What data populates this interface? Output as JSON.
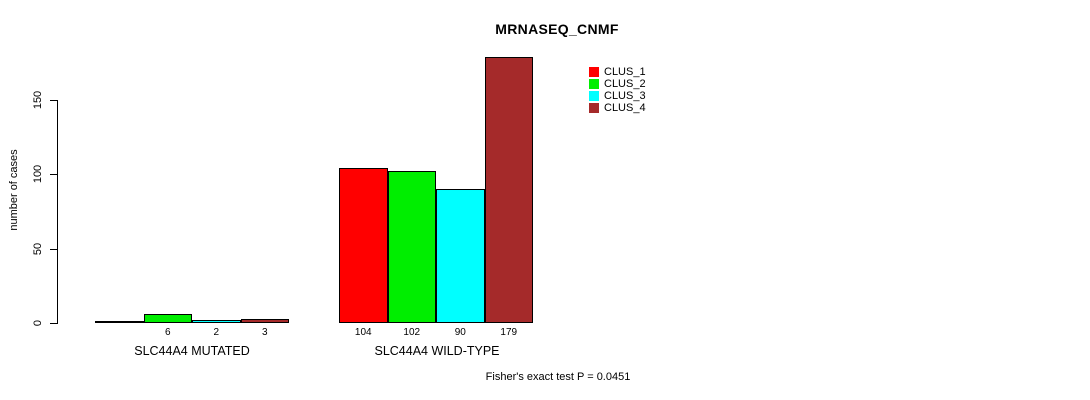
{
  "chart_data": {
    "type": "bar",
    "title": "MRNASEQ_CNMF",
    "ylabel": "number of cases",
    "xlabel": "",
    "ylim": [
      0,
      185
    ],
    "yticks": [
      "0",
      "50",
      "100",
      "150"
    ],
    "grid": false,
    "legend_position": "top-right",
    "categories": [
      "SLC44A4 MUTATED",
      "SLC44A4 WILD-TYPE"
    ],
    "series": [
      {
        "name": "CLUS_1",
        "color": "#ff0000",
        "values": [
          0,
          104
        ]
      },
      {
        "name": "CLUS_2",
        "color": "#00ee00",
        "values": [
          6,
          102
        ]
      },
      {
        "name": "CLUS_3",
        "color": "#00ffff",
        "values": [
          2,
          90
        ]
      },
      {
        "name": "CLUS_4",
        "color": "#a52a2a",
        "values": [
          3,
          179
        ]
      }
    ],
    "bar_value_labels": [
      [
        "",
        "6",
        "2",
        "3"
      ],
      [
        "104",
        "102",
        "90",
        "179"
      ]
    ],
    "footnote": "Fisher's exact test P = 0.0451"
  }
}
